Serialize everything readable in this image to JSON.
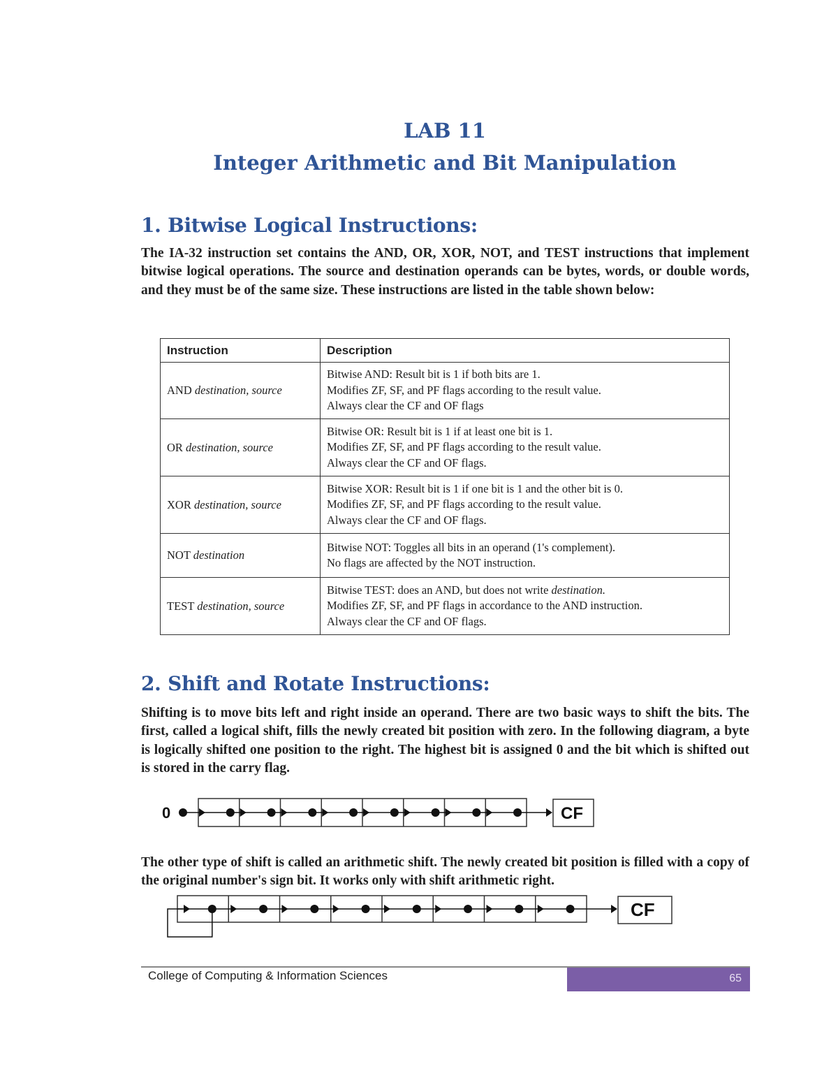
{
  "title": "LAB 11",
  "subtitle": "Integer Arithmetic and Bit Manipulation",
  "section1": {
    "heading": "1. Bitwise Logical Instructions:",
    "paragraph": "The IA-32 instruction set contains the AND, OR, XOR, NOT, and TEST instructions that implement bitwise logical operations. The source and destination operands can be bytes, words, or double words, and they must be of the same size. These instructions are listed in the table shown below:",
    "table": {
      "headers": [
        "Instruction",
        "Description"
      ],
      "rows": [
        {
          "mnemonic": "AND",
          "operands": "destination, source",
          "lines": [
            "Bitwise AND: Result bit is 1 if both bits are 1.",
            "Modifies ZF, SF, and PF flags according to the result value.",
            "Always clear the CF and OF flags"
          ]
        },
        {
          "mnemonic": "OR",
          "operands": "destination, source",
          "lines": [
            "Bitwise OR: Result bit is 1 if at least one bit is 1.",
            "Modifies ZF, SF, and PF flags according to the result value.",
            "Always clear the CF and OF flags."
          ]
        },
        {
          "mnemonic": "XOR",
          "operands": "destination, source",
          "lines": [
            "Bitwise XOR: Result bit is 1 if one bit is 1 and the other bit is 0.",
            "Modifies ZF, SF, and PF flags according to the result value.",
            "Always clear the CF and OF flags."
          ]
        },
        {
          "mnemonic": "NOT",
          "operands": "destination",
          "lines": [
            "Bitwise NOT: Toggles all bits in an operand (1's complement).",
            "No flags are affected by the NOT instruction."
          ]
        },
        {
          "mnemonic": "TEST",
          "operands": "destination, source",
          "lines_html": true,
          "lines": [
            "Bitwise TEST: does an AND, but does not write ",
            "Modifies ZF, SF, and PF flags in accordance to the AND instruction.",
            "Always clear the CF and OF flags."
          ],
          "line0_italic": "destination."
        }
      ]
    }
  },
  "section2": {
    "heading": "2. Shift and Rotate Instructions:",
    "paragraph1": "Shifting is to move bits left and right inside an operand. There are two basic ways to shift the bits. The first, called a logical shift, fills the newly created bit position with zero. In the following diagram, a byte is logically shifted one position to the right. The highest bit is assigned 0 and the bit which is shifted out is stored in the carry flag.",
    "diagram1": {
      "input_label": "0",
      "bits": 8,
      "carry_label": "CF"
    },
    "paragraph2": "The other type of shift is called an arithmetic shift. The newly created bit position is filled with a copy of the original number's sign bit. It works only with shift arithmetic right.",
    "diagram2": {
      "bits": 8,
      "carry_label": "CF"
    }
  },
  "footer": {
    "text": "College of Computing & Information Sciences",
    "page_number": "65",
    "bar_color": "#7b5ea7"
  },
  "colors": {
    "heading": "#2f5496"
  }
}
